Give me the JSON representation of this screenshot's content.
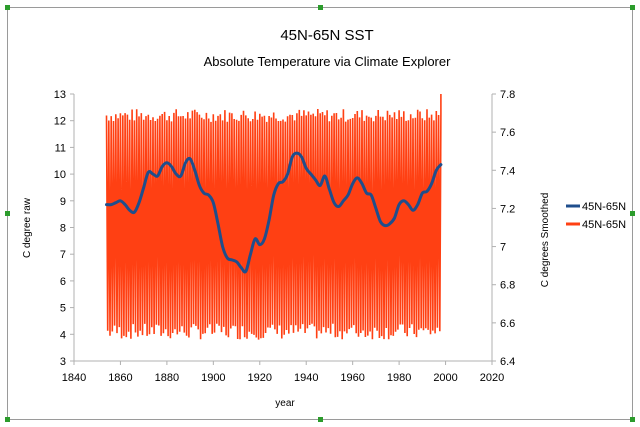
{
  "chart_data": {
    "type": "line",
    "title": "45N-65N SST",
    "subtitle": "Absolute Temperature via Climate Explorer",
    "xlabel": "year",
    "ylabel_left": "C degree raw",
    "ylabel_right": "C degrees Smoothed",
    "xlim": [
      1840,
      2020
    ],
    "x_ticks": [
      1840,
      1860,
      1880,
      1900,
      1920,
      1940,
      1960,
      1980,
      2000,
      2020
    ],
    "ylim_left": [
      3,
      13
    ],
    "y_ticks_left": [
      3,
      4,
      5,
      6,
      7,
      8,
      9,
      10,
      11,
      12,
      13
    ],
    "ylim_right": [
      6.4,
      7.8
    ],
    "y_ticks_right": [
      6.4,
      6.6,
      6.8,
      7,
      7.2,
      7.4,
      7.6,
      7.8
    ],
    "y_tick_labels_right": [
      "6.4",
      "6.6",
      "6.8",
      "7",
      "7.2",
      "7.4",
      "7.6",
      "7.8"
    ],
    "grid": false,
    "legend_position": "right",
    "series": [
      {
        "name": "45N-65N",
        "axis": "right",
        "color": "#1f4e8c",
        "x": [
          1854,
          1856,
          1858,
          1860,
          1862,
          1864,
          1866,
          1868,
          1870,
          1872,
          1874,
          1876,
          1878,
          1880,
          1882,
          1884,
          1886,
          1888,
          1890,
          1892,
          1894,
          1896,
          1898,
          1900,
          1902,
          1904,
          1906,
          1908,
          1910,
          1912,
          1914,
          1916,
          1918,
          1920,
          1922,
          1924,
          1926,
          1928,
          1930,
          1932,
          1934,
          1936,
          1938,
          1940,
          1942,
          1944,
          1946,
          1948,
          1950,
          1952,
          1954,
          1956,
          1958,
          1960,
          1962,
          1964,
          1966,
          1968,
          1970,
          1972,
          1974,
          1976,
          1978,
          1980,
          1982,
          1984,
          1986,
          1988,
          1990,
          1992,
          1994,
          1996,
          1998
        ],
        "values": [
          7.22,
          7.22,
          7.23,
          7.24,
          7.22,
          7.19,
          7.18,
          7.23,
          7.31,
          7.39,
          7.38,
          7.37,
          7.42,
          7.44,
          7.42,
          7.38,
          7.37,
          7.44,
          7.46,
          7.4,
          7.32,
          7.28,
          7.27,
          7.23,
          7.12,
          7.0,
          6.94,
          6.93,
          6.92,
          6.89,
          6.87,
          6.96,
          7.04,
          7.01,
          7.04,
          7.14,
          7.27,
          7.33,
          7.34,
          7.38,
          7.47,
          7.49,
          7.47,
          7.41,
          7.38,
          7.35,
          7.32,
          7.37,
          7.3,
          7.23,
          7.21,
          7.24,
          7.27,
          7.33,
          7.36,
          7.33,
          7.28,
          7.27,
          7.2,
          7.13,
          7.11,
          7.12,
          7.15,
          7.22,
          7.24,
          7.22,
          7.19,
          7.22,
          7.28,
          7.29,
          7.33,
          7.4,
          7.43
        ]
      },
      {
        "name": "45N-65N",
        "axis": "left",
        "color": "#ff4013",
        "x_range": [
          1854,
          1998
        ],
        "seasonal_min": 4.1,
        "seasonal_max": 12.2,
        "min_value": 3.6,
        "max_value": 13.0
      }
    ]
  }
}
